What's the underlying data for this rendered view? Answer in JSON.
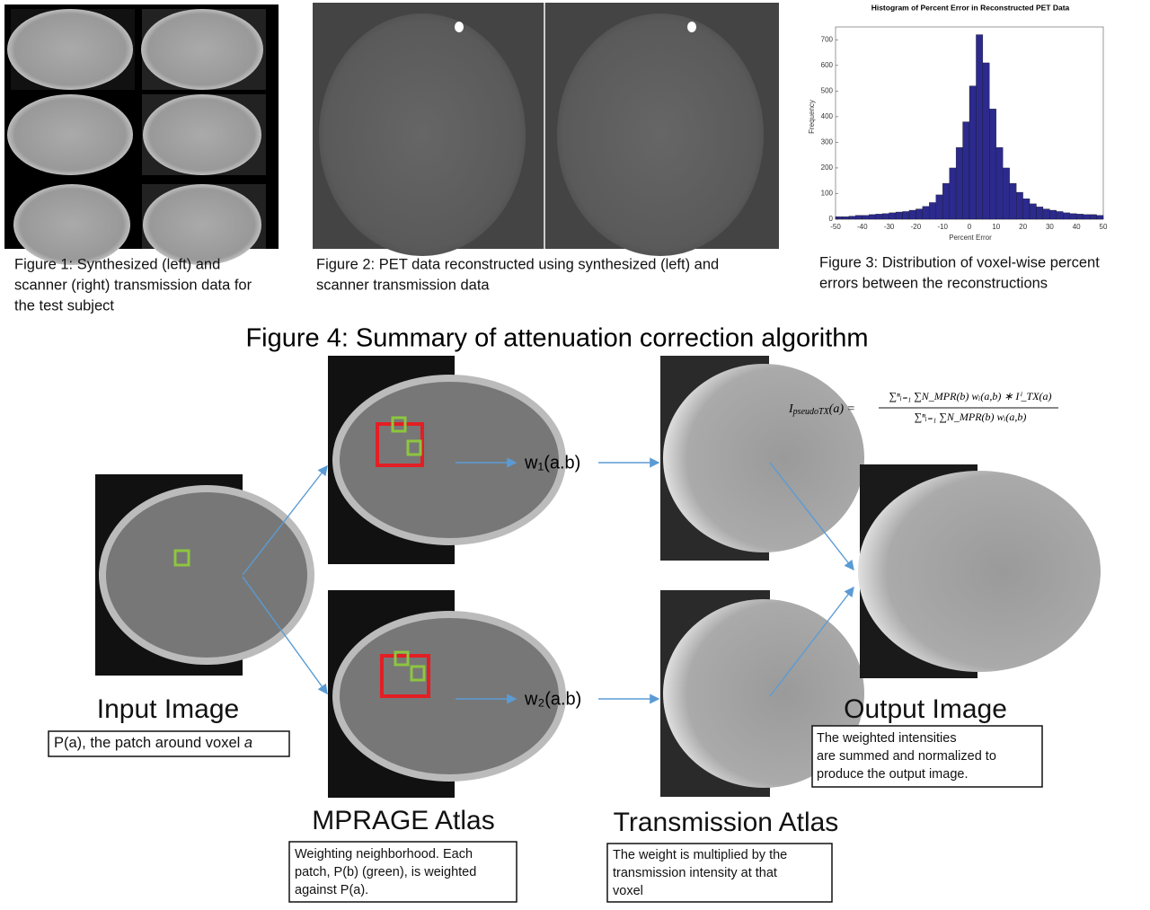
{
  "figure1": {
    "caption": [
      "Figure 1: Synthesized (left) and",
      "scanner (right) transmission data for",
      "the test subject"
    ]
  },
  "figure2": {
    "caption": [
      "Figure 2: PET data reconstructed using synthesized (left) and",
      "scanner transmission data"
    ]
  },
  "figure3": {
    "caption": [
      "Figure 3: Distribution of voxel-wise percent",
      "errors between the reconstructions"
    ]
  },
  "chart_data": {
    "type": "histogram",
    "title": "Histogram of Percent Error in Reconstructed PET Data",
    "x_label": "Percent Error",
    "y_label": "Frequency",
    "bins": [
      -50,
      -47.5,
      -45,
      -42.5,
      -40,
      -37.5,
      -35,
      -32.5,
      -30,
      -27.5,
      -25,
      -22.5,
      -20,
      -17.5,
      -15,
      -12.5,
      -10,
      -7.5,
      -5,
      -2.5,
      0,
      2.5,
      5,
      7.5,
      10,
      12.5,
      15,
      17.5,
      20,
      22.5,
      25,
      27.5,
      30,
      32.5,
      35,
      37.5,
      40,
      42.5,
      45,
      47.5,
      50
    ],
    "values": [
      10,
      10,
      12,
      15,
      15,
      18,
      20,
      22,
      25,
      28,
      30,
      35,
      40,
      50,
      65,
      95,
      140,
      200,
      280,
      380,
      520,
      720,
      610,
      430,
      280,
      200,
      140,
      105,
      80,
      60,
      48,
      40,
      35,
      30,
      25,
      22,
      20,
      18,
      18,
      15
    ],
    "color": "#2c2a8c",
    "xlim": [
      -50,
      50
    ],
    "ylim": [
      0,
      750
    ],
    "xticks": [
      -50,
      -40,
      -30,
      -20,
      -10,
      0,
      10,
      20,
      30,
      40,
      50
    ],
    "yticks": [
      0,
      100,
      200,
      300,
      400,
      500,
      600,
      700
    ]
  },
  "figure4": {
    "title": "Figure 4: Summary of attenuation correction algorithm",
    "formula": {
      "lhs": "I",
      "lhs_sub": "pseudoTX",
      "lhs_arg": "(a) =",
      "numerator": "∑ⁿᵢ₌₁ ∑N_MPR(b) wᵢ(a,b) ∗ Iⁱ_TX(a)",
      "denominator": "∑ⁿᵢ₌₁ ∑N_MPR(b) wᵢ(a,b)"
    },
    "w1": "w₁(a.b)",
    "w2": "w₂(a.b)",
    "input": {
      "label": "Input Image",
      "note": "P(a), the patch around voxel ",
      "note_italic": "a"
    },
    "mprage": {
      "label": "MPRAGE Atlas",
      "note": [
        "Weighting  neighborhood.  Each",
        "patch,  P(b)  (green),  is  weighted",
        "against P(a)."
      ]
    },
    "transmission": {
      "label": "Transmission Atlas",
      "note": [
        "The  weight  is  multiplied  by  the",
        "transmission   intensity   at   that",
        "voxel"
      ]
    },
    "output": {
      "label": "Output Image",
      "note": [
        "The weighted intensities",
        "are summed  and normalized to",
        "produce the output image."
      ]
    }
  }
}
